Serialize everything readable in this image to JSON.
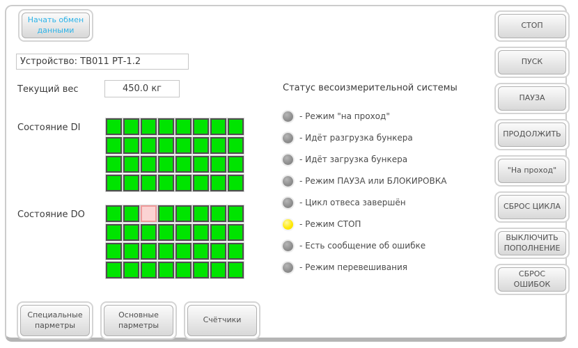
{
  "header": {
    "start_button": "Начать обмен данными",
    "device": "Устройство: ТВ011 РТ-1.2"
  },
  "weight": {
    "label": "Текущий вес",
    "value": "450.0 кг"
  },
  "io": {
    "di": {
      "label": "Состояние DI",
      "rows": 4,
      "cols": 8,
      "off_cells": []
    },
    "do": {
      "label": "Состояние DO",
      "rows": 4,
      "cols": 8,
      "off_cells": [
        [
          0,
          2
        ]
      ]
    }
  },
  "status": {
    "title": "Статус весоизмерительной системы",
    "items": [
      {
        "label": "- Режим \"на проход\"",
        "led": "gray"
      },
      {
        "label": "- Идёт разгрузка бункера",
        "led": "gray"
      },
      {
        "label": "- Идёт загрузка бункера",
        "led": "gray"
      },
      {
        "label": "- Режим ПАУЗА или БЛОКИРОВКА",
        "led": "gray"
      },
      {
        "label": "- Цикл отвеса завершён",
        "led": "gray"
      },
      {
        "label": "- Режим СТОП",
        "led": "yellow"
      },
      {
        "label": "- Есть сообщение об ошибке",
        "led": "gray"
      },
      {
        "label": "- Режим перевешивания",
        "led": "gray"
      }
    ]
  },
  "right_buttons": [
    {
      "id": "stop",
      "label": "СТОП"
    },
    {
      "id": "start",
      "label": "ПУСК"
    },
    {
      "id": "pause",
      "label": "ПАУЗА"
    },
    {
      "id": "continue",
      "label": "ПРОДОЛЖИТЬ"
    },
    {
      "id": "pass-through",
      "label": "\"На проход\""
    },
    {
      "id": "reset-cycle",
      "label": "СБРОС ЦИКЛА"
    },
    {
      "id": "disable-refill",
      "label": "ВЫКЛЮЧИТЬ ПОПОЛНЕНИЕ"
    },
    {
      "id": "reset-errors",
      "label": "СБРОС ОШИБОК"
    }
  ],
  "bottom_buttons": [
    {
      "id": "special-params",
      "label": "Специальные парметры"
    },
    {
      "id": "main-params",
      "label": "Основные парметры"
    },
    {
      "id": "counters",
      "label": "Счётчики"
    }
  ],
  "colors": {
    "accent_text": "#2db3e8",
    "led_yellow": "#ffe800",
    "led_gray": "#8d8d8d",
    "io_on": "#00e400",
    "io_off": "#fbd3d3"
  }
}
